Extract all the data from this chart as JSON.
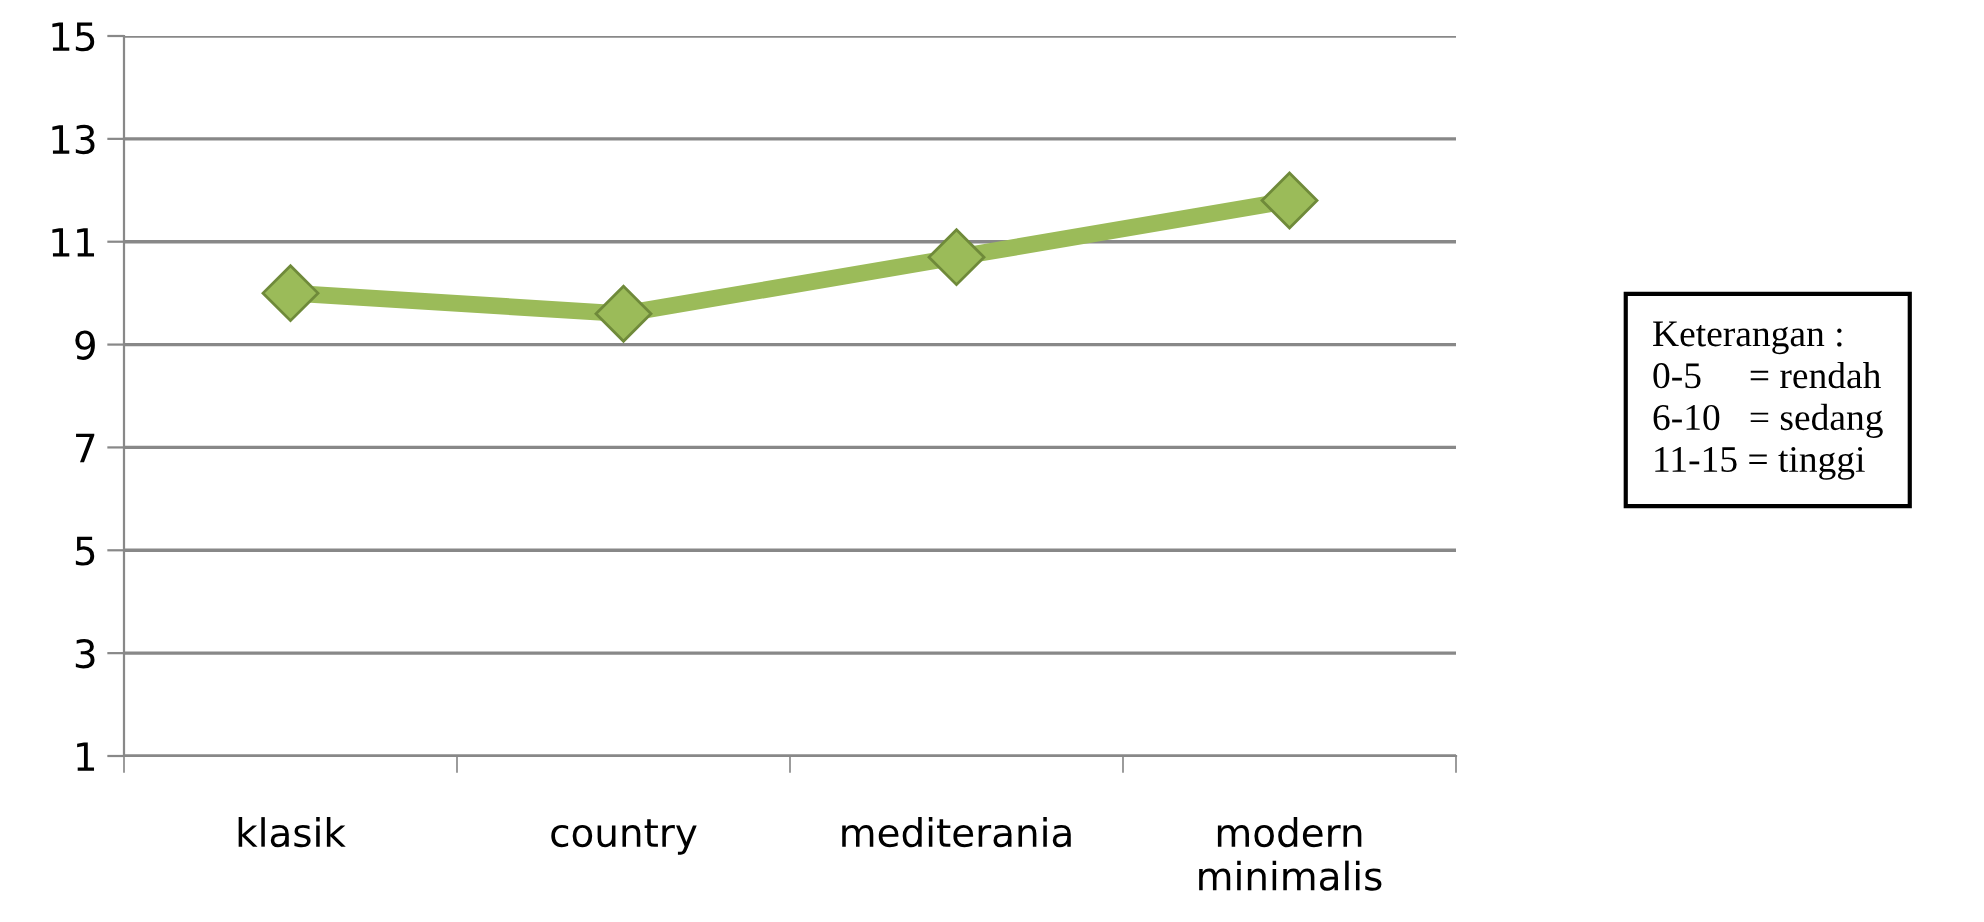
{
  "chart_data": {
    "type": "line",
    "categories": [
      "klasik",
      "country",
      "mediterania",
      "modern\nminimalis"
    ],
    "series": [
      {
        "color": "#9bbb59",
        "values": [
          10.0,
          9.6,
          10.7,
          11.8
        ]
      }
    ],
    "ylim": [
      1,
      15
    ],
    "yticks": [
      1,
      3,
      5,
      7,
      9,
      11,
      13,
      15
    ],
    "grid": "y",
    "marker": "diamond",
    "line_style": "solid",
    "legend": false,
    "annotations": [
      "Keterangan :\n0-5     = rendah\n6-10   = sedang\n11-15 = tinggi"
    ]
  }
}
